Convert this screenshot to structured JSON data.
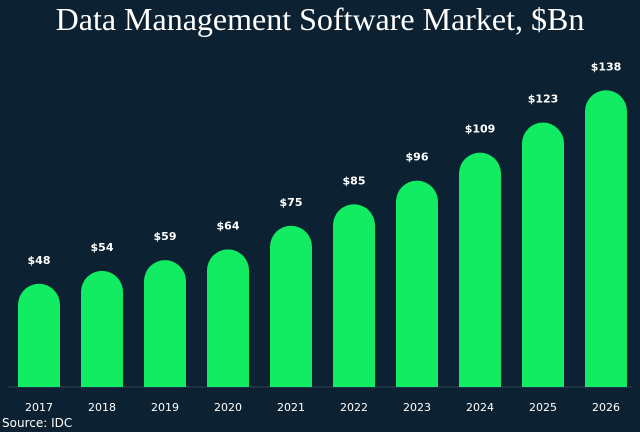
{
  "chart_data": {
    "type": "bar",
    "title": "Data Management Software Market, $Bn",
    "categories": [
      "2017",
      "2018",
      "2019",
      "2020",
      "2021",
      "2022",
      "2023",
      "2024",
      "2025",
      "2026"
    ],
    "values": [
      48,
      54,
      59,
      64,
      75,
      85,
      96,
      109,
      123,
      138
    ],
    "value_labels": [
      "$48",
      "$54",
      "$59",
      "$64",
      "$75",
      "$85",
      "$96",
      "$109",
      "$123",
      "$138"
    ],
    "xlabel": "",
    "ylabel": "",
    "ylim": [
      0,
      140
    ],
    "grid": false,
    "legend": "none",
    "bar_color": "#11ec62",
    "background_color": "#0c2131"
  },
  "source": "Source: IDC"
}
